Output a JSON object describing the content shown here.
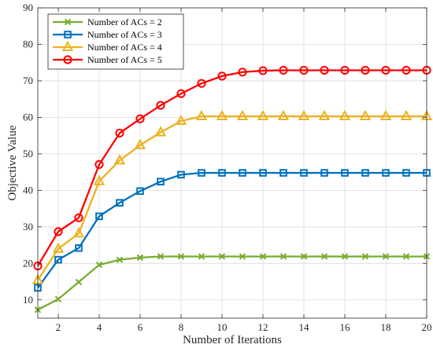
{
  "chart_data": {
    "type": "line",
    "xlabel": "Number of Iterations",
    "ylabel": "Objective Value",
    "xlim": [
      1,
      20
    ],
    "ylim": [
      5,
      90
    ],
    "xticks": [
      2,
      4,
      6,
      8,
      10,
      12,
      14,
      16,
      18,
      20
    ],
    "yticks": [
      10,
      20,
      30,
      40,
      50,
      60,
      70,
      80,
      90
    ],
    "grid": true,
    "legend_position": "top-left",
    "x": [
      1,
      2,
      3,
      4,
      5,
      6,
      7,
      8,
      9,
      10,
      11,
      12,
      13,
      14,
      15,
      16,
      17,
      18,
      19,
      20
    ],
    "series": [
      {
        "name": "Number of ACs = 2",
        "color": "#77ac30",
        "marker": "x",
        "values": [
          7.3,
          10.2,
          14.9,
          19.6,
          21.0,
          21.6,
          21.9,
          21.9,
          21.9,
          21.9,
          21.9,
          21.9,
          21.9,
          21.9,
          21.9,
          21.9,
          21.9,
          21.9,
          21.9,
          21.9
        ]
      },
      {
        "name": "Number of ACs = 3",
        "color": "#0072bd",
        "marker": "square",
        "values": [
          13.3,
          21.0,
          24.2,
          32.9,
          36.6,
          39.8,
          42.4,
          44.3,
          44.8,
          44.8,
          44.8,
          44.8,
          44.8,
          44.8,
          44.8,
          44.8,
          44.8,
          44.8,
          44.8,
          44.8
        ]
      },
      {
        "name": "Number of ACs = 4",
        "color": "#edb120",
        "marker": "triangle",
        "values": [
          15.4,
          24.0,
          28.2,
          42.5,
          48.2,
          52.4,
          55.9,
          59.0,
          60.3,
          60.3,
          60.3,
          60.3,
          60.3,
          60.3,
          60.3,
          60.3,
          60.3,
          60.3,
          60.3,
          60.3
        ]
      },
      {
        "name": "Number of ACs = 5",
        "color": "#ff0000",
        "marker": "circle",
        "values": [
          19.3,
          28.7,
          32.5,
          47.1,
          55.7,
          59.6,
          63.3,
          66.5,
          69.3,
          71.3,
          72.4,
          72.8,
          72.9,
          72.9,
          72.9,
          72.9,
          72.9,
          72.9,
          72.9,
          72.9
        ]
      }
    ]
  }
}
